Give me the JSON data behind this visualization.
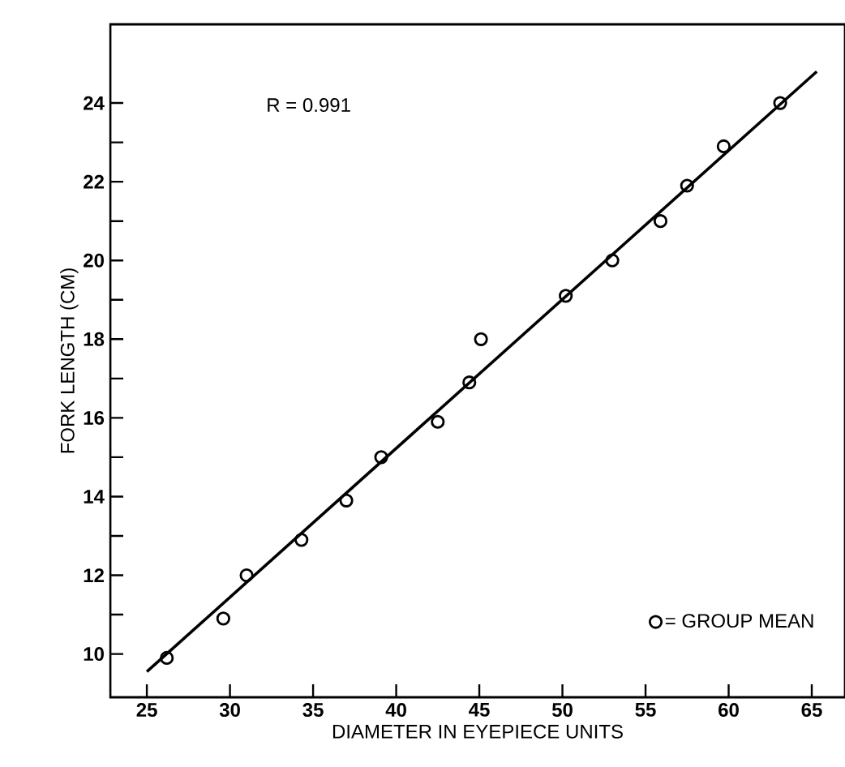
{
  "chart_data": {
    "type": "scatter",
    "xlabel": "DIAMETER  IN  EYEPIECE  UNITS",
    "ylabel": "FORK  LENGTH  (CM)",
    "xlim": [
      22.8,
      67
    ],
    "ylim": [
      8.9,
      26
    ],
    "xticks": [
      25,
      30,
      35,
      40,
      45,
      50,
      55,
      60,
      65
    ],
    "yticks": [
      10,
      {
        "value": 11,
        "label": null
      },
      12,
      {
        "value": 13,
        "label": null
      },
      14,
      {
        "value": 15,
        "label": null
      },
      16,
      {
        "value": 17,
        "label": null
      },
      18,
      {
        "value": 19,
        "label": null
      },
      20,
      {
        "value": 21,
        "label": null
      },
      22,
      {
        "value": 23,
        "label": null
      },
      24
    ],
    "annotations": [
      "R = 0.991"
    ],
    "legend": "bottom right",
    "series": [
      {
        "type": "scatter",
        "name": "= GROUP MEAN",
        "color": "#000000",
        "marker": "circle",
        "x": [
          26.2,
          29.6,
          31.0,
          34.3,
          37.0,
          39.1,
          42.5,
          44.4,
          45.1,
          50.2,
          53.0,
          55.9,
          57.5,
          59.7,
          63.1
        ],
        "values": [
          9.9,
          10.9,
          12.0,
          12.9,
          13.9,
          15.0,
          15.9,
          16.9,
          18.0,
          19.1,
          20.0,
          21.0,
          21.9,
          22.9,
          24.0
        ]
      },
      {
        "type": "line",
        "color": "#000000",
        "line_style": "solid",
        "x": [
          25,
          65.3
        ],
        "values": [
          9.55,
          24.8
        ]
      }
    ]
  }
}
